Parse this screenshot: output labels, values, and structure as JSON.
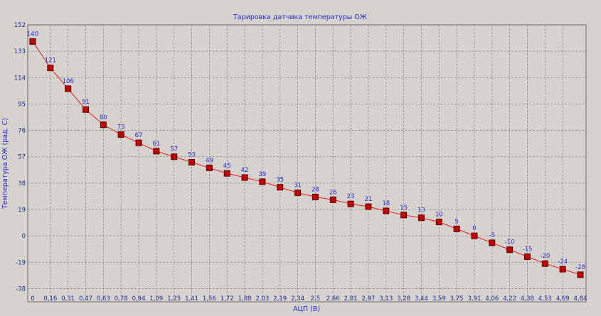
{
  "chart_data": {
    "type": "line",
    "title": "Тарировка датчика температуры ОЖ",
    "xlabel": "АЦП (В)",
    "ylabel": "Температура ОЖ (рад. С)",
    "x": [
      "0",
      "0,16",
      "0,31",
      "0,47",
      "0,63",
      "0,78",
      "0,94",
      "1,09",
      "1,25",
      "1,41",
      "1,56",
      "1,72",
      "1,88",
      "2,03",
      "2,19",
      "2,34",
      "2,5",
      "2,66",
      "2,81",
      "2,97",
      "3,13",
      "3,28",
      "3,44",
      "3,59",
      "3,75",
      "3,91",
      "4,06",
      "4,22",
      "4,38",
      "4,53",
      "4,69",
      "4,84"
    ],
    "y_ticks": [
      "152",
      "133",
      "114",
      "95",
      "76",
      "57",
      "38",
      "19",
      "0",
      "-19",
      "-38"
    ],
    "ylim": [
      -47.5,
      152
    ],
    "grid": true,
    "series": [
      {
        "values": [
          140,
          121,
          106,
          91,
          80,
          73,
          67,
          61,
          57,
          53,
          49,
          45,
          42,
          39,
          35,
          31,
          28,
          26,
          23,
          21,
          18,
          15,
          13,
          10,
          5,
          0,
          -5,
          -10,
          -15,
          -20,
          -24,
          -28
        ],
        "labels": [
          "140",
          "121",
          "106",
          "91",
          "80",
          "73",
          "67",
          "61",
          "57",
          "53",
          "49",
          "45",
          "42",
          "39",
          "35",
          "31",
          "28",
          "26",
          "23",
          "21",
          "18",
          "15",
          "13",
          "10",
          "5",
          "0",
          "-5",
          "-10",
          "-15",
          "-20",
          "-24",
          "-28"
        ],
        "line_color": "#e81c1c",
        "marker_color": "#c00000"
      }
    ],
    "colors": {
      "background": "#d6d3ce",
      "plot_background": "#d6d3ce",
      "text": "#2b2bd6",
      "grid": "#8f8f8f"
    }
  }
}
